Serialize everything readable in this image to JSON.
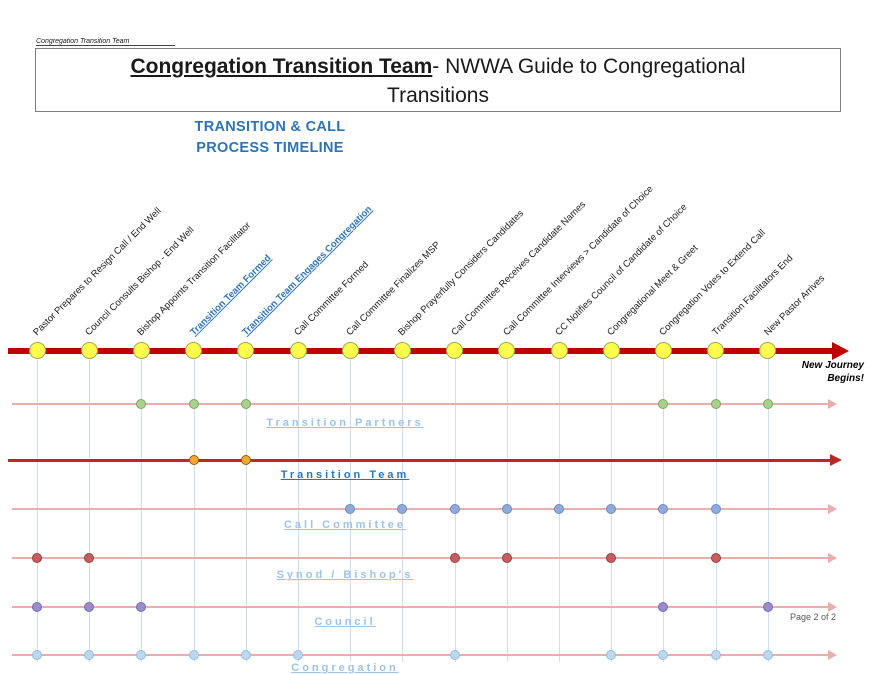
{
  "corner_label": "Congregation Transition Team",
  "header": {
    "title_emphasis": "Congregation Transition Team",
    "title_after": "- NWWA Guide to Congregational",
    "title_line2": "Transitions"
  },
  "subtitle": {
    "line1": "TRANSITION & CALL",
    "line2": "PROCESS TIMELINE"
  },
  "timeline": {
    "milestones": [
      {
        "label": "Pastor Prepares to Resign Call / End Well",
        "highlight": false
      },
      {
        "label": "Council Consults Bishop - End Well",
        "highlight": false
      },
      {
        "label": "Bishop Appoints Transition Facilitator",
        "highlight": false
      },
      {
        "label": "Transition Team Formed",
        "highlight": true
      },
      {
        "label": "Transition Team Engages Congregation",
        "highlight": true
      },
      {
        "label": "Call Committee Formed",
        "highlight": false
      },
      {
        "label": "Call Committee Finalizes MSP",
        "highlight": false
      },
      {
        "label": "Bishop Prayerfully Considers Candidates",
        "highlight": false
      },
      {
        "label": "Call Committee Receives Candidate Names",
        "highlight": false
      },
      {
        "label": "Call Committee Interviews > Candidate of Choice",
        "highlight": false
      },
      {
        "label": "CC Notifies Council of Candidate of Choice",
        "highlight": false
      },
      {
        "label": "Congregational Meet & Greet",
        "highlight": false
      },
      {
        "label": "Congregation Votes to Extend Call",
        "highlight": false
      },
      {
        "label": "Transition Facilitators End",
        "highlight": false
      },
      {
        "label": "New Pastor Arrives",
        "highlight": false
      }
    ],
    "end_note": {
      "line1": "New Journey",
      "line2": "Begins!"
    }
  },
  "lanes": [
    {
      "label": "Transition Partners",
      "emphasis": false,
      "dot_color": "#a9d18e",
      "dot_border": "#7ca75c",
      "dots": [
        2,
        3,
        4,
        12,
        13,
        14
      ]
    },
    {
      "label": "Transition Team",
      "emphasis": true,
      "dot_color": "#f4a733",
      "dot_border": "#9c5a00",
      "dots": [
        3,
        4
      ]
    },
    {
      "label": "Call Committee",
      "emphasis": false,
      "dot_color": "#8faadc",
      "dot_border": "#6a8bc4",
      "dots": [
        6,
        7,
        8,
        9,
        10,
        11,
        12,
        13
      ]
    },
    {
      "label": "Synod / Bishop's",
      "emphasis": false,
      "dot_color": "#c55f5f",
      "dot_border": "#a03c3c",
      "dots": [
        0,
        1,
        8,
        9,
        11,
        13
      ]
    },
    {
      "label": "Council",
      "emphasis": false,
      "dot_color": "#9a8ccb",
      "dot_border": "#7a6bb0",
      "dots": [
        0,
        1,
        2,
        12,
        14
      ]
    },
    {
      "label": "Congregation",
      "emphasis": false,
      "dot_color": "#bdd7ee",
      "dot_border": "#94bede",
      "dots": [
        0,
        1,
        2,
        3,
        4,
        5,
        8,
        11,
        12,
        13,
        14
      ]
    }
  ],
  "page_number": "Page 2 of 2",
  "colors": {
    "timeline_red": "#c00000",
    "node_yellow": "#ffff4d",
    "heading_blue": "#2e74b5",
    "lane_label_blue": "#9dc3e6",
    "lane_line_pink": "#eaaeae",
    "connector_blue": "#cfdff2"
  }
}
